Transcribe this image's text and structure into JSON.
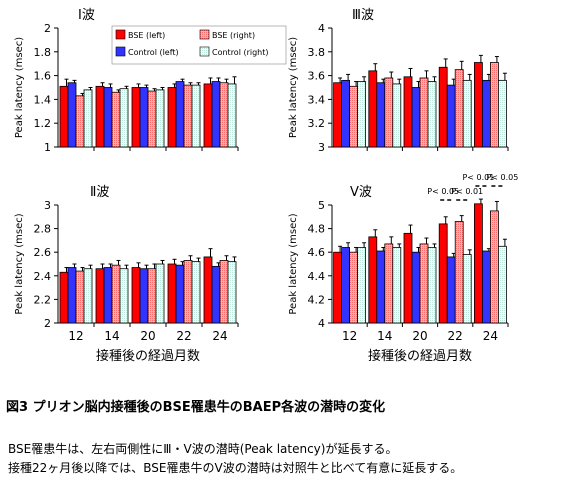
{
  "chart_data": [
    {
      "type": "bar",
      "title": "Ⅰ波",
      "ylabel": "Peak latency (msec)",
      "xlabel": "",
      "ylim": [
        1,
        2
      ],
      "yticks": [
        "1",
        "1.2",
        "1.4",
        "1.6",
        "1.8",
        "2"
      ],
      "categories": [
        "",
        "",
        "",
        "",
        ""
      ],
      "series": [
        {
          "name": "BSE (left)",
          "values": [
            1.51,
            1.51,
            1.5,
            1.5,
            1.53
          ],
          "errors": [
            0.06,
            0.03,
            0.03,
            0.03,
            0.05
          ]
        },
        {
          "name": "Control (left)",
          "values": [
            1.54,
            1.5,
            1.5,
            1.55,
            1.55
          ],
          "errors": [
            0.02,
            0.03,
            0.02,
            0.02,
            0.03
          ]
        },
        {
          "name": "BSE (right)",
          "values": [
            1.43,
            1.46,
            1.47,
            1.52,
            1.54
          ],
          "errors": [
            0.02,
            0.02,
            0.02,
            0.02,
            0.03
          ]
        },
        {
          "name": "Control (right)",
          "values": [
            1.48,
            1.49,
            1.48,
            1.52,
            1.53
          ],
          "errors": [
            0.02,
            0.02,
            0.02,
            0.02,
            0.06
          ]
        }
      ],
      "legend": "top"
    },
    {
      "type": "bar",
      "title": "Ⅲ波",
      "ylabel": "Peak latency (msec)",
      "xlabel": "",
      "ylim": [
        3,
        4
      ],
      "yticks": [
        "3",
        "3.2",
        "3.4",
        "3.6",
        "3.8",
        "4"
      ],
      "categories": [
        "",
        "",
        "",
        "",
        ""
      ],
      "series": [
        {
          "name": "BSE (left)",
          "values": [
            3.54,
            3.64,
            3.59,
            3.67,
            3.71
          ],
          "errors": [
            0.04,
            0.06,
            0.07,
            0.07,
            0.06
          ]
        },
        {
          "name": "Control (left)",
          "values": [
            3.56,
            3.54,
            3.5,
            3.52,
            3.56
          ],
          "errors": [
            0.05,
            0.03,
            0.05,
            0.05,
            0.05
          ]
        },
        {
          "name": "BSE (right)",
          "values": [
            3.51,
            3.58,
            3.58,
            3.65,
            3.71
          ],
          "errors": [
            0.04,
            0.05,
            0.06,
            0.07,
            0.05
          ]
        },
        {
          "name": "Control (right)",
          "values": [
            3.55,
            3.53,
            3.55,
            3.56,
            3.56
          ],
          "errors": [
            0.04,
            0.04,
            0.04,
            0.05,
            0.06
          ]
        }
      ]
    },
    {
      "type": "bar",
      "title": "Ⅱ波",
      "ylabel": "Peak latency (msec)",
      "xlabel": "接種後の経過月数",
      "ylim": [
        2,
        3
      ],
      "yticks": [
        "2",
        "2.2",
        "2.4",
        "2.6",
        "2.8",
        "3"
      ],
      "categories": [
        "12",
        "14",
        "20",
        "22",
        "24"
      ],
      "series": [
        {
          "name": "BSE (left)",
          "values": [
            2.43,
            2.46,
            2.47,
            2.5,
            2.56
          ],
          "errors": [
            0.04,
            0.04,
            0.04,
            0.04,
            0.07
          ]
        },
        {
          "name": "Control (left)",
          "values": [
            2.47,
            2.47,
            2.46,
            2.49,
            2.48
          ],
          "errors": [
            0.03,
            0.03,
            0.03,
            0.03,
            0.03
          ]
        },
        {
          "name": "BSE (right)",
          "values": [
            2.44,
            2.49,
            2.46,
            2.53,
            2.53
          ],
          "errors": [
            0.03,
            0.04,
            0.04,
            0.04,
            0.04
          ]
        },
        {
          "name": "Control (right)",
          "values": [
            2.46,
            2.46,
            2.5,
            2.52,
            2.52
          ],
          "errors": [
            0.03,
            0.03,
            0.03,
            0.03,
            0.04
          ]
        }
      ]
    },
    {
      "type": "bar",
      "title": "Ⅴ波",
      "ylabel": "Peak latency (msec)",
      "xlabel": "接種後の経過月数",
      "ylim": [
        4,
        5
      ],
      "yticks": [
        "4",
        "4.2",
        "4.4",
        "4.6",
        "4.8",
        "5"
      ],
      "categories": [
        "12",
        "14",
        "20",
        "22",
        "24"
      ],
      "series": [
        {
          "name": "BSE (left)",
          "values": [
            4.6,
            4.73,
            4.76,
            4.84,
            5.01
          ],
          "errors": [
            0.05,
            0.06,
            0.07,
            0.06,
            0.04
          ]
        },
        {
          "name": "Control (left)",
          "values": [
            4.64,
            4.61,
            4.6,
            4.56,
            4.61
          ],
          "errors": [
            0.04,
            0.03,
            0.04,
            0.03,
            0.02
          ]
        },
        {
          "name": "BSE (right)",
          "values": [
            4.6,
            4.67,
            4.67,
            4.86,
            4.95
          ],
          "errors": [
            0.04,
            0.06,
            0.05,
            0.05,
            0.08
          ]
        },
        {
          "name": "Control (right)",
          "values": [
            4.64,
            4.64,
            4.64,
            4.58,
            4.65
          ],
          "errors": [
            0.04,
            0.03,
            0.03,
            0.04,
            0.06
          ]
        }
      ],
      "annotations": [
        {
          "text": "P< 0.05",
          "group": 3,
          "pair": "left"
        },
        {
          "text": "P< 0.01",
          "group": 3,
          "pair": "right"
        },
        {
          "text": "P< 0.01",
          "group": 4,
          "pair": "left"
        },
        {
          "text": "P< 0.05",
          "group": 4,
          "pair": "right"
        }
      ]
    }
  ],
  "colors": {
    "bse_left": "#ff0000",
    "control_left": "#3333ff",
    "bse_right": "#ff9999",
    "control_right": "#e8fff8"
  },
  "caption": {
    "title": "図3 プリオン脳内接種後のBSE罹患牛のBAEP各波の潜時の変化",
    "line1": "BSE罹患牛は、左右両側性にⅢ・Ⅴ波の潜時(Peak latency)が延長する。",
    "line2": "接種22ヶ月後以降では、BSE罹患牛のⅤ波の潜時は対照牛と比べて有意に延長する。"
  }
}
